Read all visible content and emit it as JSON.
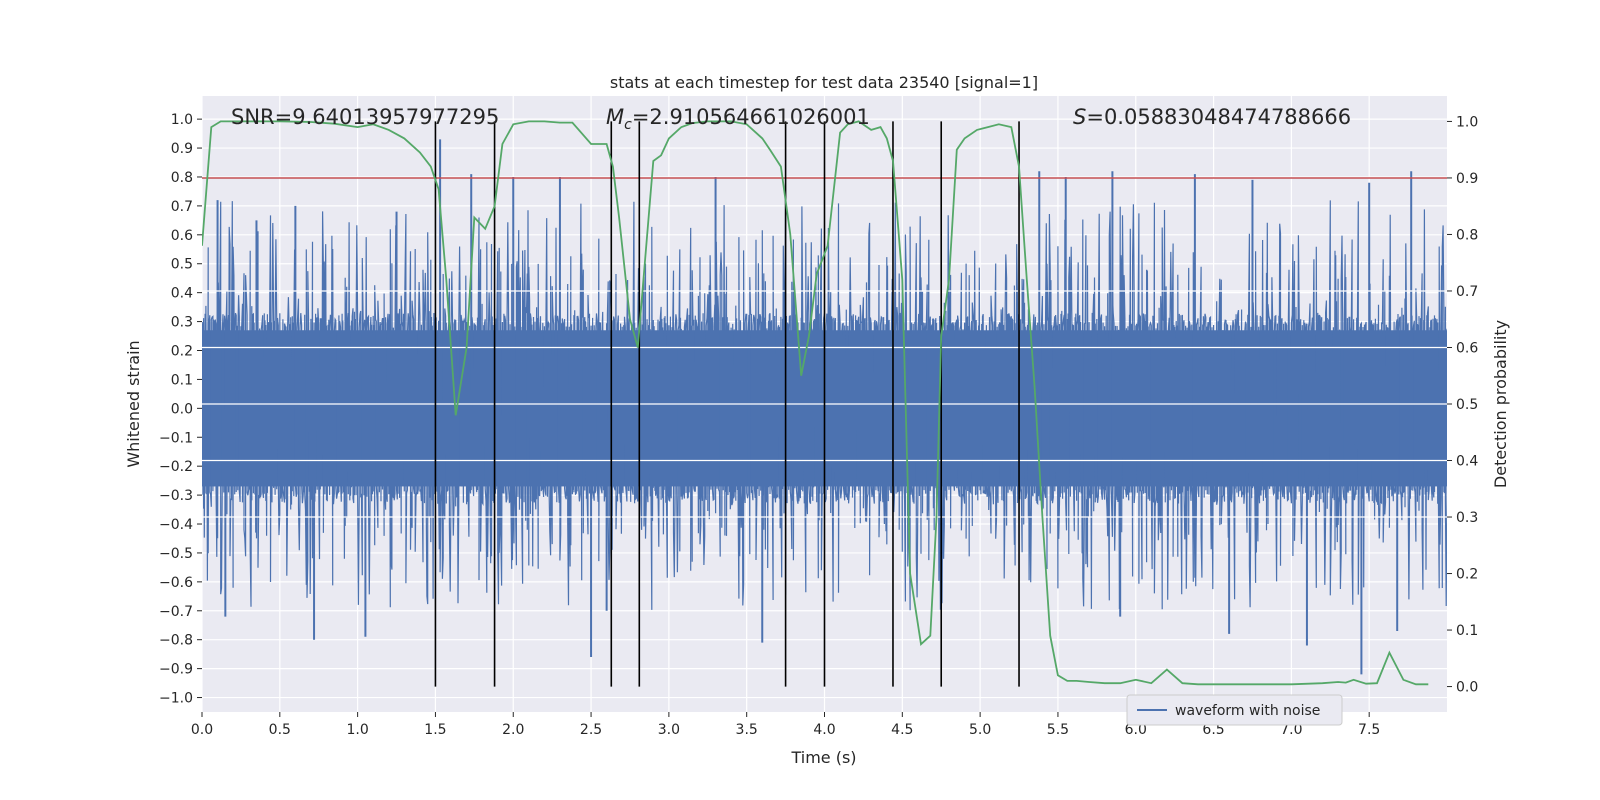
{
  "chart_data": {
    "type": "line",
    "title": "stats at each timestep for test data 23540 [signal=1]",
    "xlabel": "Time (s)",
    "ylabel_left": "Whitened strain",
    "ylabel_right": "Detection probability",
    "xlim": [
      0.0,
      8.0
    ],
    "ylim_left": [
      -1.05,
      1.08
    ],
    "ylim_right": [
      -0.045,
      1.045
    ],
    "x_ticks": [
      "0.0",
      "0.5",
      "1.0",
      "1.5",
      "2.0",
      "2.5",
      "3.0",
      "3.5",
      "4.0",
      "4.5",
      "5.0",
      "5.5",
      "6.0",
      "6.5",
      "7.0",
      "7.5"
    ],
    "y_ticks_left": [
      "1.0",
      "0.9",
      "0.8",
      "0.7",
      "0.6",
      "0.5",
      "0.4",
      "0.3",
      "0.2",
      "0.1",
      "0.0",
      "−0.1",
      "−0.2",
      "−0.3",
      "−0.4",
      "−0.5",
      "−0.6",
      "−0.7",
      "−0.8",
      "−0.9",
      "−1.0"
    ],
    "y_ticks_right": [
      "1.0",
      "0.9",
      "0.8",
      "0.7",
      "0.6",
      "0.5",
      "0.4",
      "0.3",
      "0.2",
      "0.1",
      "0.0"
    ],
    "grid": true,
    "background_color": "#eaeaf2",
    "annotations": {
      "snr": "SNR=9.64013957977295",
      "mc": "=2.910564661026001",
      "mc_symbol": "M",
      "mc_subscript": "c",
      "s_symbol": "S",
      "s": "=0.05883048474788666"
    },
    "legend": {
      "placement": "lower-right",
      "entries": [
        "waveform with noise"
      ]
    },
    "threshold": {
      "value_right_axis": 0.9,
      "color": "#c44e52"
    },
    "vertical_markers": [
      1.5,
      1.88,
      2.63,
      2.81,
      3.75,
      4.0,
      4.44,
      4.75,
      5.25
    ],
    "series": [
      {
        "name": "waveform with noise",
        "axis": "left",
        "color": "#4c72b0",
        "envelope_max": 0.72,
        "envelope_min": -0.7,
        "spikes": [
          {
            "x": 0.1,
            "y": 0.72
          },
          {
            "x": 0.35,
            "y": 0.65
          },
          {
            "x": 0.6,
            "y": 0.7
          },
          {
            "x": 1.25,
            "y": 0.68
          },
          {
            "x": 1.53,
            "y": 0.93
          },
          {
            "x": 1.73,
            "y": 0.81
          },
          {
            "x": 2.0,
            "y": 0.8
          },
          {
            "x": 2.3,
            "y": 0.8
          },
          {
            "x": 3.3,
            "y": 0.8
          },
          {
            "x": 5.38,
            "y": 0.82
          },
          {
            "x": 5.55,
            "y": 0.8
          },
          {
            "x": 5.85,
            "y": 0.82
          },
          {
            "x": 6.38,
            "y": 0.81
          },
          {
            "x": 6.75,
            "y": 0.79
          },
          {
            "x": 7.5,
            "y": 0.78
          },
          {
            "x": 7.77,
            "y": 0.82
          },
          {
            "x": 0.15,
            "y": -0.72
          },
          {
            "x": 0.72,
            "y": -0.8
          },
          {
            "x": 1.05,
            "y": -0.79
          },
          {
            "x": 2.5,
            "y": -0.86
          },
          {
            "x": 2.6,
            "y": -0.7
          },
          {
            "x": 3.6,
            "y": -0.81
          },
          {
            "x": 5.9,
            "y": -0.72
          },
          {
            "x": 6.6,
            "y": -0.78
          },
          {
            "x": 7.1,
            "y": -0.82
          },
          {
            "x": 7.45,
            "y": -0.92
          },
          {
            "x": 7.68,
            "y": -0.77
          }
        ]
      },
      {
        "name": "",
        "axis": "right",
        "color": "#55a868",
        "x": [
          0.0,
          0.06,
          0.12,
          0.18,
          0.3,
          0.5,
          0.7,
          0.85,
          1.0,
          1.1,
          1.2,
          1.3,
          1.4,
          1.47,
          1.52,
          1.57,
          1.63,
          1.7,
          1.75,
          1.82,
          1.88,
          1.93,
          2.0,
          2.1,
          2.2,
          2.3,
          2.38,
          2.5,
          2.6,
          2.64,
          2.68,
          2.75,
          2.8,
          2.9,
          2.95,
          3.0,
          3.08,
          3.15,
          3.25,
          3.4,
          3.5,
          3.6,
          3.65,
          3.72,
          3.78,
          3.85,
          3.9,
          3.95,
          4.02,
          4.1,
          4.15,
          4.22,
          4.3,
          4.36,
          4.4,
          4.44,
          4.5,
          4.55,
          4.62,
          4.68,
          4.72,
          4.75,
          4.8,
          4.85,
          4.9,
          4.98,
          5.05,
          5.12,
          5.2,
          5.25,
          5.3,
          5.35,
          5.4,
          5.45,
          5.5,
          5.56,
          5.62,
          5.7,
          5.8,
          5.9,
          6.0,
          6.1,
          6.2,
          6.3,
          6.4,
          6.6,
          6.8,
          7.0,
          7.2,
          7.3,
          7.35,
          7.4,
          7.48,
          7.55,
          7.63,
          7.72,
          7.8,
          7.88
        ],
        "y": [
          0.78,
          0.99,
          1.0,
          1.0,
          1.0,
          1.0,
          0.999,
          0.996,
          0.99,
          0.995,
          0.985,
          0.97,
          0.945,
          0.92,
          0.88,
          0.72,
          0.48,
          0.6,
          0.83,
          0.81,
          0.85,
          0.96,
          0.995,
          1.0,
          1.0,
          0.998,
          0.998,
          0.96,
          0.96,
          0.92,
          0.83,
          0.65,
          0.6,
          0.93,
          0.94,
          0.97,
          0.99,
          0.997,
          1.0,
          1.0,
          0.995,
          0.97,
          0.95,
          0.92,
          0.8,
          0.55,
          0.62,
          0.73,
          0.78,
          0.98,
          0.995,
          1.0,
          0.985,
          0.99,
          0.97,
          0.93,
          0.72,
          0.2,
          0.075,
          0.09,
          0.3,
          0.62,
          0.72,
          0.95,
          0.97,
          0.985,
          0.99,
          0.995,
          0.99,
          0.92,
          0.72,
          0.53,
          0.3,
          0.09,
          0.02,
          0.01,
          0.01,
          0.008,
          0.006,
          0.006,
          0.012,
          0.006,
          0.03,
          0.006,
          0.004,
          0.004,
          0.004,
          0.004,
          0.006,
          0.008,
          0.007,
          0.012,
          0.005,
          0.006,
          0.06,
          0.012,
          0.004,
          0.004
        ]
      }
    ]
  }
}
